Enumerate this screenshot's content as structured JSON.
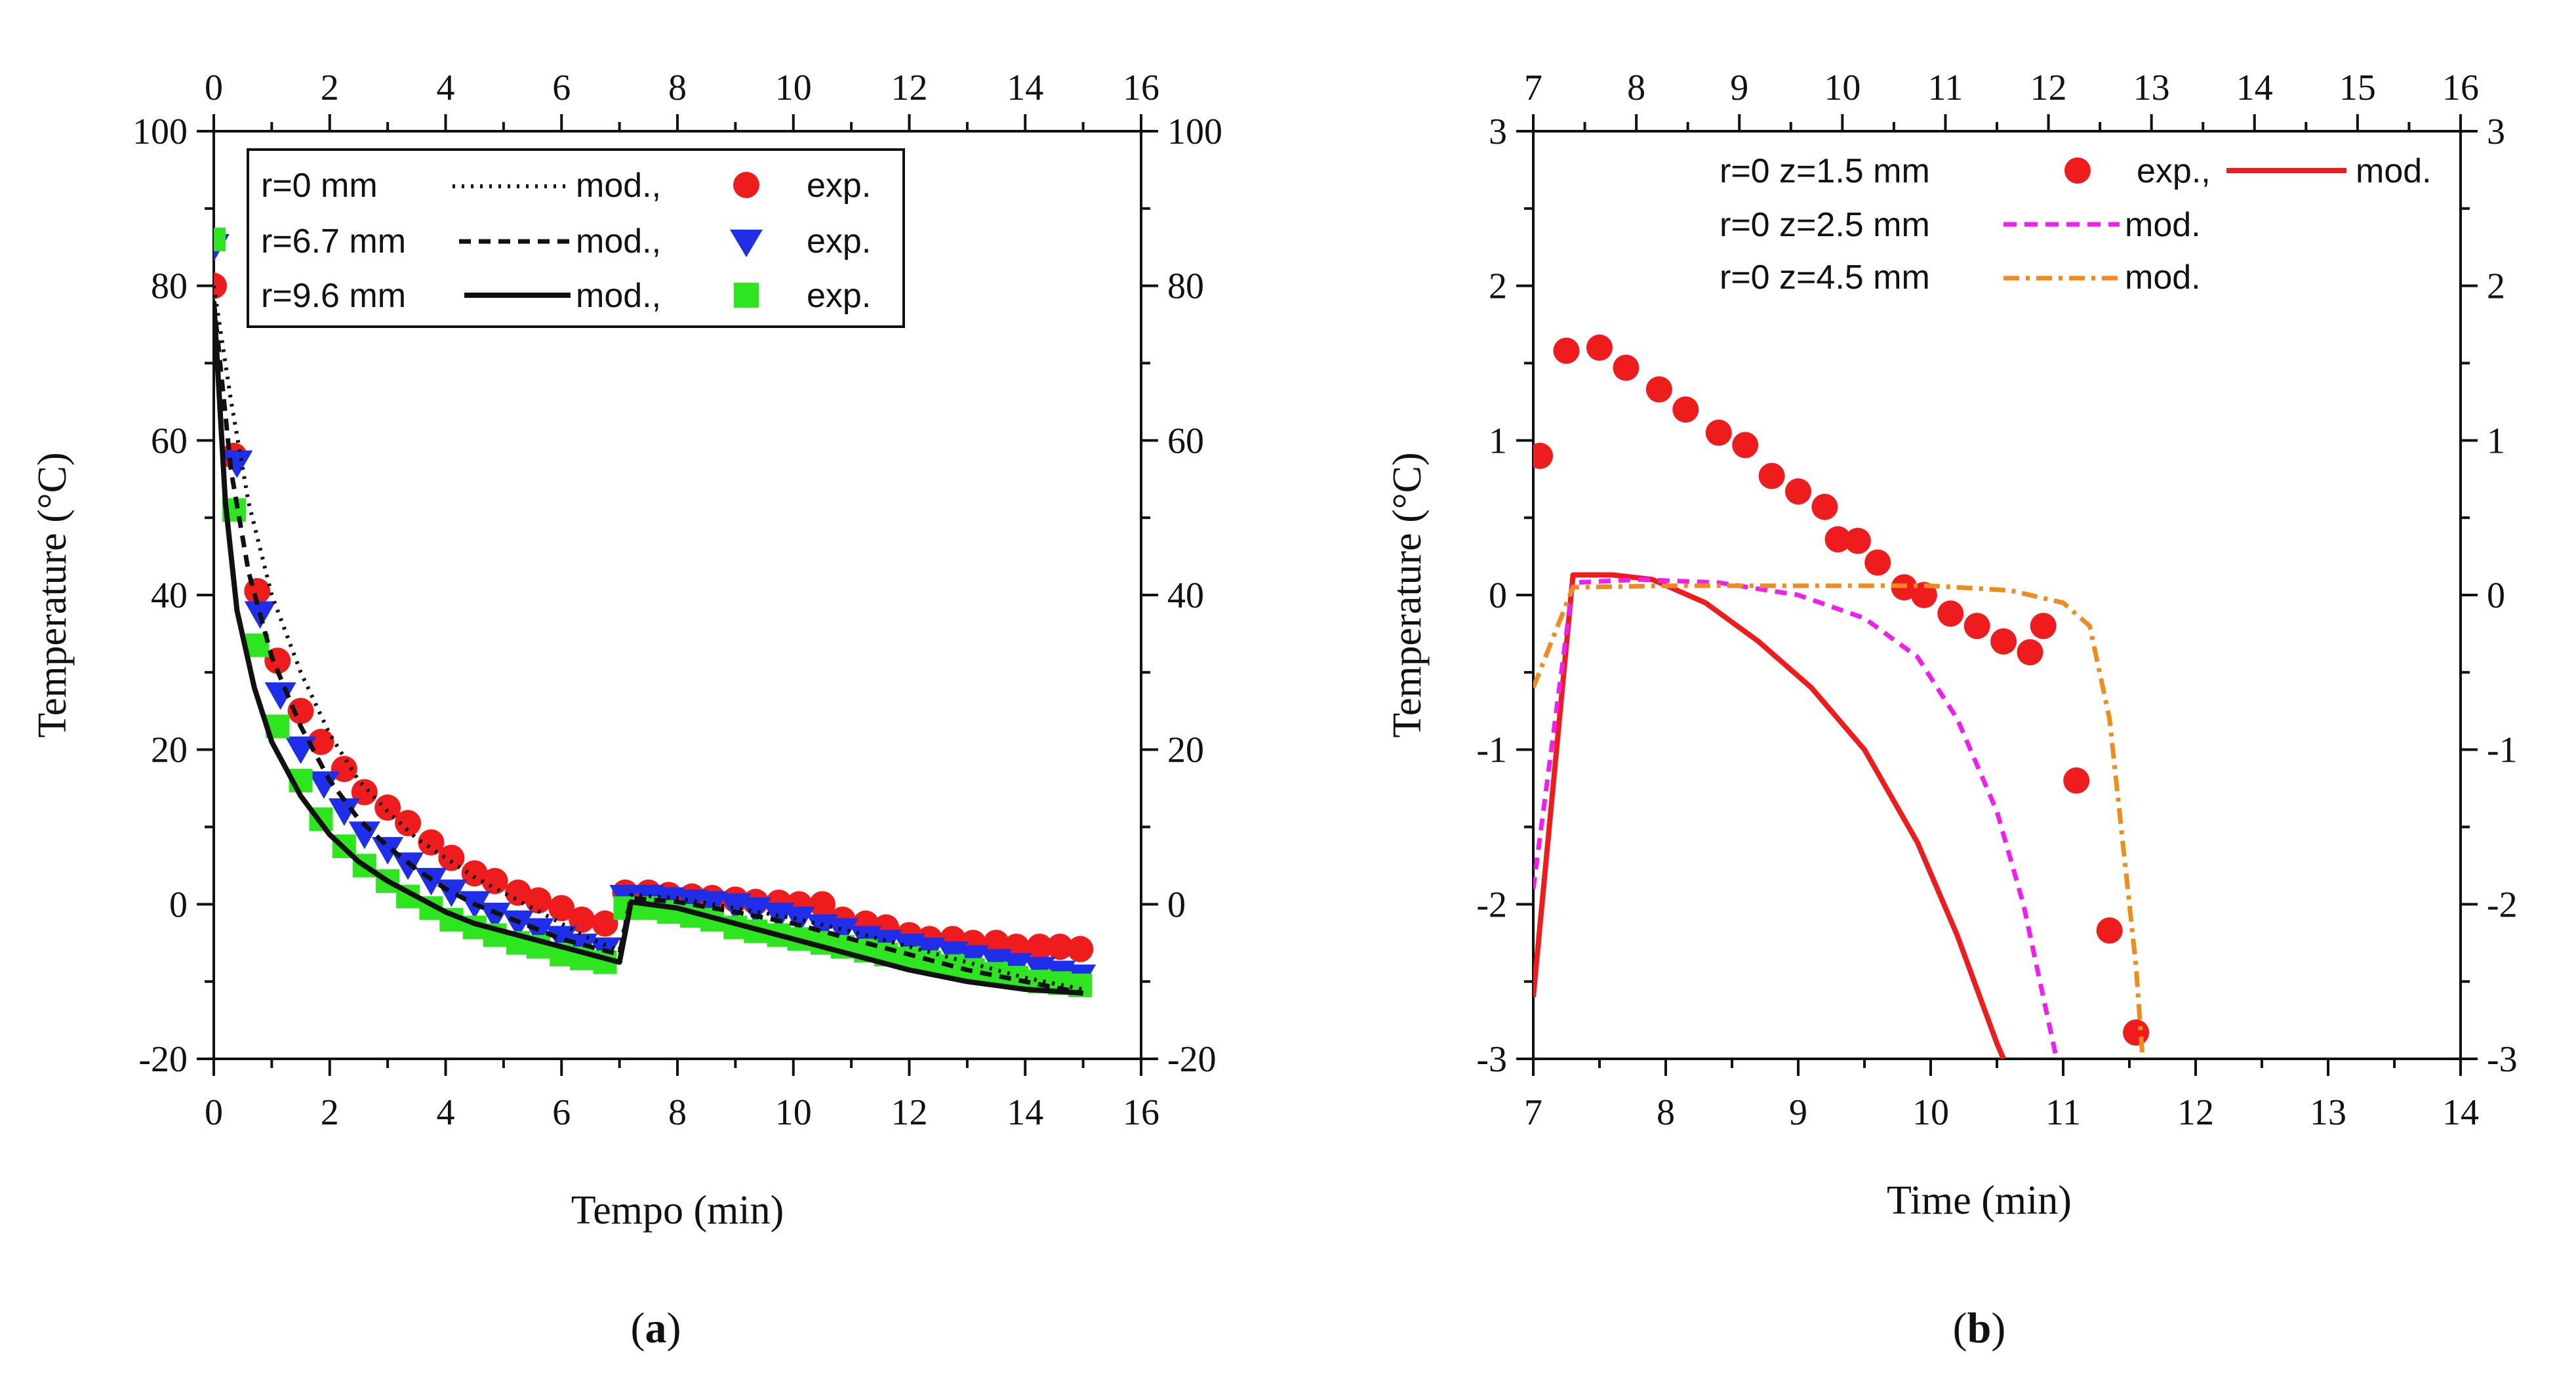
{
  "colors": {
    "red": "#ee1c1c",
    "blue": "#1f2ee8",
    "green": "#2ee61f",
    "black": "#111111",
    "magenta": "#f01ff0",
    "orange": "#f08c1e"
  },
  "chart_data": [
    {
      "id": "a",
      "type": "line",
      "panel_label": "a",
      "panel_open": "(",
      "panel_close": ")",
      "xlabel": "Tempo (min)",
      "ylabel": "Temperature (°C)",
      "xlim": [
        0,
        16
      ],
      "ylim": [
        -20,
        100
      ],
      "xticks": [
        0,
        2,
        4,
        6,
        8,
        10,
        12,
        14,
        16
      ],
      "yticks": [
        -20,
        0,
        20,
        40,
        60,
        80,
        100
      ],
      "legend": [
        {
          "label": "r=0 mm",
          "mod": "mod.,",
          "exp": "exp."
        },
        {
          "label": "r=6.7 mm",
          "mod": "mod.,",
          "exp": "exp."
        },
        {
          "label": "r=9.6 mm",
          "mod": "mod.,",
          "exp": "exp."
        }
      ],
      "model_series": [
        {
          "name": "r=0 mm mod.",
          "style": "dotted",
          "x": [
            0,
            0.3,
            0.6,
            1.0,
            1.5,
            2.0,
            2.5,
            3.0,
            3.5,
            4.0,
            4.5,
            5.0,
            5.5,
            6.0,
            6.5,
            7.0,
            7.2,
            8,
            9,
            10,
            11,
            12,
            13,
            14,
            15
          ],
          "y": [
            80,
            65,
            52,
            40,
            30,
            22,
            16,
            12,
            8.5,
            6,
            3.5,
            1.5,
            -0.5,
            -2.5,
            -4.5,
            -6,
            1.2,
            0.8,
            -0.5,
            -1.8,
            -3.5,
            -5.5,
            -7.5,
            -9.5,
            -11
          ]
        },
        {
          "name": "r=6.7 mm mod.",
          "style": "dashed",
          "x": [
            0,
            0.3,
            0.6,
            1.0,
            1.5,
            2.0,
            2.5,
            3.0,
            3.5,
            4.0,
            4.5,
            5.0,
            5.5,
            6.0,
            6.5,
            7.0,
            7.2,
            8,
            9,
            10,
            11,
            12,
            13,
            14,
            15
          ],
          "y": [
            78,
            56,
            43,
            32,
            23,
            16,
            11,
            7.5,
            4.5,
            2,
            0,
            -1.5,
            -3,
            -4.5,
            -5.5,
            -6.5,
            0.8,
            0.3,
            -1,
            -2.5,
            -4.5,
            -6.5,
            -8.5,
            -10,
            -11.5
          ]
        },
        {
          "name": "r=9.6 mm mod.",
          "style": "solid",
          "x": [
            0,
            0.2,
            0.4,
            0.7,
            1.0,
            1.5,
            2.0,
            2.5,
            3.0,
            3.5,
            4.0,
            4.5,
            5.0,
            5.5,
            6.0,
            6.5,
            7.0,
            7.2,
            8,
            9,
            10,
            11,
            12,
            13,
            14,
            15
          ],
          "y": [
            78,
            52,
            38,
            28,
            21,
            14,
            9,
            5.5,
            3,
            1,
            -1,
            -2.5,
            -3.5,
            -4.5,
            -5.5,
            -6.5,
            -7.5,
            0.3,
            -0.5,
            -2.5,
            -4.5,
            -6.5,
            -8.5,
            -10,
            -11,
            -11.5
          ]
        }
      ],
      "exp_series": [
        {
          "name": "r=0 mm exp.",
          "marker": "circle",
          "color": "red",
          "x": [
            0,
            0.35,
            0.75,
            1.1,
            1.5,
            1.85,
            2.25,
            2.6,
            3.0,
            3.35,
            3.75,
            4.1,
            4.5,
            4.85,
            5.25,
            5.6,
            6.0,
            6.35,
            6.75,
            7.1,
            7.5,
            7.85,
            8.25,
            8.6,
            9.0,
            9.35,
            9.75,
            10.1,
            10.5,
            10.85,
            11.25,
            11.6,
            12.0,
            12.35,
            12.75,
            13.1,
            13.5,
            13.85,
            14.25,
            14.6,
            14.95
          ],
          "y": [
            80,
            58,
            40.5,
            31.5,
            25,
            21,
            17.5,
            14.5,
            12.5,
            10.5,
            8,
            6,
            4,
            3,
            1.5,
            0.5,
            -0.5,
            -2,
            -2.5,
            1.5,
            1.5,
            1.2,
            1,
            0.8,
            0.6,
            0.3,
            0.2,
            0,
            0,
            -2,
            -2.5,
            -3,
            -4,
            -4.5,
            -4.5,
            -5,
            -5,
            -5.5,
            -5.5,
            -5.5,
            -5.8
          ]
        },
        {
          "name": "r=6.7 mm exp.",
          "marker": "triangle-down",
          "color": "blue",
          "x": [
            0,
            0.4,
            0.8,
            1.15,
            1.5,
            1.9,
            2.25,
            2.6,
            3.0,
            3.35,
            3.75,
            4.1,
            4.5,
            4.85,
            5.25,
            5.6,
            6.0,
            6.35,
            6.75,
            7.1,
            7.5,
            7.85,
            8.25,
            8.6,
            9.0,
            9.35,
            9.75,
            10.1,
            10.5,
            10.85,
            11.25,
            11.6,
            12.0,
            12.35,
            12.75,
            13.1,
            13.5,
            13.85,
            14.25,
            14.6,
            14.95
          ],
          "y": [
            85,
            57,
            37.5,
            27,
            20,
            15.5,
            12,
            9,
            7,
            5,
            3,
            1.5,
            0,
            -1.5,
            -2.5,
            -3.5,
            -4.5,
            -5.5,
            -6,
            0.8,
            0.8,
            0.5,
            0.2,
            0,
            -0.3,
            -0.8,
            -1.5,
            -2,
            -3,
            -3.5,
            -4.5,
            -5,
            -5.5,
            -6,
            -6.5,
            -7,
            -7.5,
            -8,
            -8.5,
            -9,
            -9.5
          ]
        },
        {
          "name": "r=9.6 mm exp.",
          "marker": "square",
          "color": "green",
          "x": [
            0,
            0.35,
            0.75,
            1.1,
            1.5,
            1.85,
            2.25,
            2.6,
            3.0,
            3.35,
            3.75,
            4.1,
            4.5,
            4.85,
            5.25,
            5.6,
            6.0,
            6.35,
            6.75,
            7.1,
            7.5,
            7.85,
            8.25,
            8.6,
            9.0,
            9.35,
            9.75,
            10.1,
            10.5,
            10.85,
            11.25,
            11.6,
            12.0,
            12.35,
            12.75,
            13.1,
            13.5,
            13.85,
            14.25,
            14.6,
            14.95
          ],
          "y": [
            86,
            51,
            33.5,
            23,
            16,
            11,
            7.5,
            5,
            3,
            1,
            -0.5,
            -2,
            -3,
            -4,
            -5,
            -5.5,
            -6.5,
            -7,
            -7.5,
            -0.5,
            -0.5,
            -1,
            -1.5,
            -2,
            -3,
            -3.5,
            -4,
            -4.5,
            -5,
            -5.5,
            -6,
            -6.5,
            -7,
            -7.5,
            -8,
            -8.5,
            -9,
            -9.5,
            -10,
            -10.2,
            -10.5
          ]
        }
      ]
    },
    {
      "id": "b",
      "type": "line",
      "panel_label": "b",
      "panel_open": "(",
      "panel_close": ")",
      "xlabel": "Time (min)",
      "ylabel": "Temperature (°C)",
      "xlim": [
        7,
        14
      ],
      "ylim": [
        -3,
        3
      ],
      "xticks": [
        7,
        8,
        9,
        10,
        11,
        12,
        13,
        14
      ],
      "yticks": [
        -3,
        -2,
        -1,
        0,
        1,
        2,
        3
      ],
      "top_xlim": [
        7,
        16
      ],
      "top_xticks": [
        7,
        8,
        9,
        10,
        11,
        12,
        13,
        14,
        15,
        16
      ],
      "legend": [
        {
          "label": "r=0 z=1.5 mm",
          "exp": "exp.,",
          "mod": "mod."
        },
        {
          "label": "r=0 z=2.5 mm",
          "mod": "mod."
        },
        {
          "label": "r=0 z=4.5 mm",
          "mod": "mod."
        }
      ],
      "model_series": [
        {
          "name": "r=0 z=1.5 mm mod.",
          "style": "solid",
          "color": "red",
          "x": [
            7.0,
            7.3,
            7.6,
            7.9,
            8.3,
            8.7,
            9.1,
            9.5,
            9.9,
            10.2,
            10.5,
            10.55
          ],
          "y": [
            -2.6,
            0.13,
            0.13,
            0.1,
            -0.05,
            -0.3,
            -0.6,
            -1.0,
            -1.6,
            -2.2,
            -2.9,
            -3.0
          ]
        },
        {
          "name": "r=0 z=2.5 mm mod.",
          "style": "dashed",
          "color": "magenta",
          "x": [
            7.0,
            7.3,
            7.8,
            8.4,
            9.0,
            9.5,
            9.9,
            10.2,
            10.5,
            10.7,
            10.85,
            10.95
          ],
          "y": [
            -1.9,
            0.08,
            0.1,
            0.08,
            0.0,
            -0.15,
            -0.4,
            -0.8,
            -1.4,
            -2.0,
            -2.6,
            -3.0
          ]
        },
        {
          "name": "r=0 z=4.5 mm mod.",
          "style": "dash-dot",
          "color": "orange",
          "x": [
            7.0,
            7.3,
            8.0,
            9.0,
            10.0,
            10.6,
            11.0,
            11.2,
            11.35,
            11.45,
            11.55,
            11.6
          ],
          "y": [
            -0.6,
            0.05,
            0.06,
            0.06,
            0.06,
            0.03,
            -0.05,
            -0.2,
            -0.8,
            -1.6,
            -2.4,
            -3.0
          ]
        }
      ],
      "exp_series": [
        {
          "name": "r=0 z=1.5 mm exp.",
          "marker": "circle",
          "color": "red",
          "x": [
            7.05,
            7.25,
            7.5,
            7.7,
            7.95,
            8.15,
            8.4,
            8.6,
            8.8,
            9.0,
            9.2,
            9.3,
            9.45,
            9.6,
            9.8,
            9.95,
            10.15,
            10.35,
            10.55,
            10.75,
            10.85,
            11.1,
            11.35,
            11.55
          ],
          "y": [
            0.9,
            1.58,
            1.6,
            1.47,
            1.33,
            1.2,
            1.05,
            0.97,
            0.77,
            0.67,
            0.57,
            0.36,
            0.35,
            0.21,
            0.05,
            0.0,
            -0.12,
            -0.2,
            -0.3,
            -0.37,
            -0.2,
            -1.2,
            -2.17,
            -2.83
          ]
        }
      ]
    }
  ]
}
